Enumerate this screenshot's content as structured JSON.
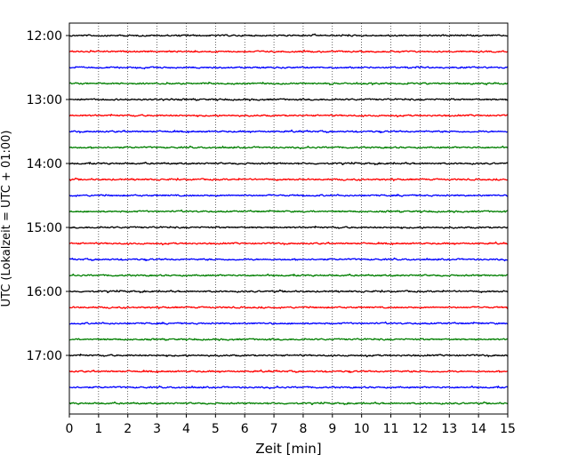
{
  "chart_data": {
    "type": "line",
    "title": "",
    "xlabel": "Zeit  [min]",
    "ylabel": "UTC (Lokalzeit = UTC + 01:00)",
    "xlim": [
      0,
      15
    ],
    "x_ticks": [
      "0",
      "1",
      "2",
      "3",
      "4",
      "5",
      "6",
      "7",
      "8",
      "9",
      "10",
      "11",
      "12",
      "13",
      "14",
      "15"
    ],
    "y_ticks": [
      "12:00",
      "13:00",
      "14:00",
      "15:00",
      "16:00",
      "17:00"
    ],
    "grid": "vertical dotted lines at each minute",
    "trace_colors": [
      "#000000",
      "#ff0000",
      "#0000ff",
      "#007f00"
    ],
    "traces": [
      {
        "start": "12:00",
        "color": "#000000"
      },
      {
        "start": "12:15",
        "color": "#ff0000"
      },
      {
        "start": "12:30",
        "color": "#0000ff"
      },
      {
        "start": "12:45",
        "color": "#007f00"
      },
      {
        "start": "13:00",
        "color": "#000000"
      },
      {
        "start": "13:15",
        "color": "#ff0000"
      },
      {
        "start": "13:30",
        "color": "#0000ff"
      },
      {
        "start": "13:45",
        "color": "#007f00"
      },
      {
        "start": "14:00",
        "color": "#000000"
      },
      {
        "start": "14:15",
        "color": "#ff0000"
      },
      {
        "start": "14:30",
        "color": "#0000ff"
      },
      {
        "start": "14:45",
        "color": "#007f00"
      },
      {
        "start": "15:00",
        "color": "#000000"
      },
      {
        "start": "15:15",
        "color": "#ff0000"
      },
      {
        "start": "15:30",
        "color": "#0000ff"
      },
      {
        "start": "15:45",
        "color": "#007f00"
      },
      {
        "start": "16:00",
        "color": "#000000"
      },
      {
        "start": "16:15",
        "color": "#ff0000"
      },
      {
        "start": "16:30",
        "color": "#0000ff"
      },
      {
        "start": "16:45",
        "color": "#007f00"
      },
      {
        "start": "17:00",
        "color": "#000000"
      },
      {
        "start": "17:15",
        "color": "#ff0000"
      },
      {
        "start": "17:30",
        "color": "#0000ff"
      },
      {
        "start": "17:45",
        "color": "#007f00"
      }
    ]
  }
}
